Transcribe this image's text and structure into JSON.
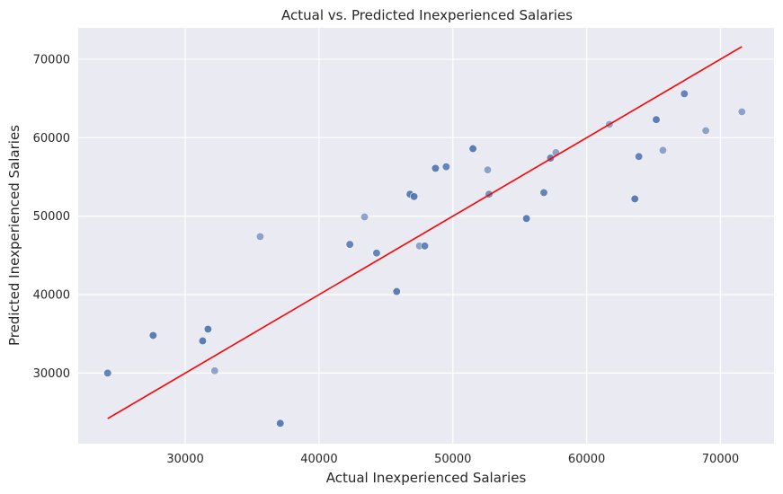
{
  "chart_data": {
    "type": "scatter",
    "title": "Actual vs. Predicted Inexperienced Salaries",
    "xlabel": "Actual Inexperienced Salaries",
    "ylabel": "Predicted Inexperienced Salaries",
    "xlim": [
      22000,
      74000
    ],
    "ylim": [
      21000,
      74000
    ],
    "x_ticks": [
      30000,
      40000,
      50000,
      60000,
      70000
    ],
    "y_ticks": [
      30000,
      40000,
      50000,
      60000,
      70000
    ],
    "x_tick_labels": [
      "30000",
      "40000",
      "50000",
      "60000",
      "70000"
    ],
    "y_tick_labels": [
      "30000",
      "40000",
      "50000",
      "60000",
      "70000"
    ],
    "grid": true,
    "style": "seaborn-darkgrid",
    "colors": {
      "background": "#eaeaf2",
      "grid": "#ffffff",
      "points": "#4c72b0",
      "line": "#ff0000"
    },
    "points": [
      {
        "x": 24200,
        "y": 30000,
        "alpha": 0.85
      },
      {
        "x": 27600,
        "y": 34800,
        "alpha": 0.9
      },
      {
        "x": 31300,
        "y": 34100,
        "alpha": 0.9
      },
      {
        "x": 31700,
        "y": 35600,
        "alpha": 0.9
      },
      {
        "x": 32200,
        "y": 30300,
        "alpha": 0.6
      },
      {
        "x": 35600,
        "y": 47400,
        "alpha": 0.6
      },
      {
        "x": 37100,
        "y": 23600,
        "alpha": 0.9
      },
      {
        "x": 42300,
        "y": 46400,
        "alpha": 0.85
      },
      {
        "x": 43400,
        "y": 49900,
        "alpha": 0.6
      },
      {
        "x": 44300,
        "y": 45300,
        "alpha": 0.85
      },
      {
        "x": 45800,
        "y": 40400,
        "alpha": 0.9
      },
      {
        "x": 46800,
        "y": 52800,
        "alpha": 0.9
      },
      {
        "x": 47100,
        "y": 52500,
        "alpha": 0.9
      },
      {
        "x": 47500,
        "y": 46200,
        "alpha": 0.6
      },
      {
        "x": 47900,
        "y": 46200,
        "alpha": 0.85
      },
      {
        "x": 48700,
        "y": 56100,
        "alpha": 0.9
      },
      {
        "x": 49500,
        "y": 56300,
        "alpha": 0.85
      },
      {
        "x": 51500,
        "y": 58600,
        "alpha": 0.9
      },
      {
        "x": 52600,
        "y": 55900,
        "alpha": 0.6
      },
      {
        "x": 52700,
        "y": 52800,
        "alpha": 0.75
      },
      {
        "x": 55500,
        "y": 49700,
        "alpha": 0.9
      },
      {
        "x": 56800,
        "y": 53000,
        "alpha": 0.85
      },
      {
        "x": 57300,
        "y": 57400,
        "alpha": 0.85
      },
      {
        "x": 57700,
        "y": 58100,
        "alpha": 0.6
      },
      {
        "x": 61700,
        "y": 61700,
        "alpha": 0.6
      },
      {
        "x": 63600,
        "y": 52200,
        "alpha": 0.9
      },
      {
        "x": 63900,
        "y": 57600,
        "alpha": 0.85
      },
      {
        "x": 65200,
        "y": 62300,
        "alpha": 0.9
      },
      {
        "x": 65700,
        "y": 58400,
        "alpha": 0.6
      },
      {
        "x": 67300,
        "y": 65600,
        "alpha": 0.85
      },
      {
        "x": 68900,
        "y": 60900,
        "alpha": 0.6
      },
      {
        "x": 71600,
        "y": 63300,
        "alpha": 0.6
      }
    ],
    "reference_line": {
      "x": [
        24200,
        71600
      ],
      "y": [
        24200,
        71600
      ]
    }
  }
}
